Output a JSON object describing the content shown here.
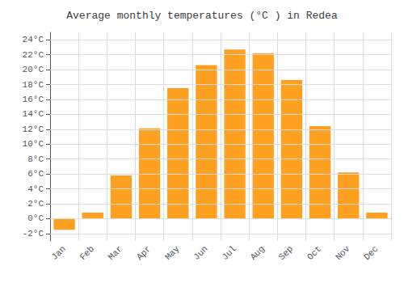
{
  "chart_data": {
    "type": "bar",
    "title": "Average monthly temperatures (°C ) in Redea",
    "categories": [
      "Jan",
      "Feb",
      "Mar",
      "Apr",
      "May",
      "Jun",
      "Jul",
      "Aug",
      "Sep",
      "Oct",
      "Nov",
      "Dec"
    ],
    "values": [
      -1.5,
      0.8,
      5.8,
      12.1,
      17.5,
      20.6,
      22.7,
      22.2,
      18.6,
      12.4,
      6.2,
      0.8
    ],
    "color": "#FFA020",
    "ylim": [
      -3,
      25
    ],
    "yticks": [
      {
        "value": -2,
        "label": "-2°C"
      },
      {
        "value": 0,
        "label": "0°C"
      },
      {
        "value": 2,
        "label": "2°C"
      },
      {
        "value": 4,
        "label": "4°C"
      },
      {
        "value": 6,
        "label": "6°C"
      },
      {
        "value": 8,
        "label": "8°C"
      },
      {
        "value": 10,
        "label": "10°C"
      },
      {
        "value": 12,
        "label": "12°C"
      },
      {
        "value": 14,
        "label": "14°C"
      },
      {
        "value": 16,
        "label": "16°C"
      },
      {
        "value": 18,
        "label": "18°C"
      },
      {
        "value": 20,
        "label": "20°C"
      },
      {
        "value": 22,
        "label": "22°C"
      },
      {
        "value": 24,
        "label": "24°C"
      }
    ],
    "grid": true
  }
}
